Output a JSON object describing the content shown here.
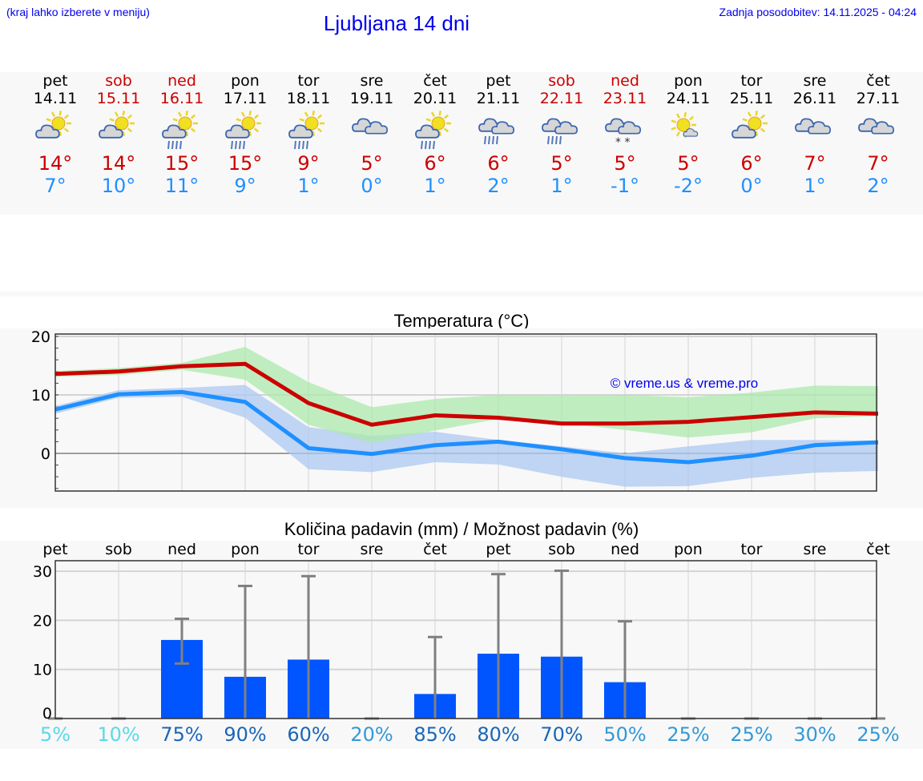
{
  "header": {
    "hint": "(kraj lahko izberete v meniju)",
    "title": "Ljubljana 14 dni",
    "updated": "Zadnja posodobitev: 14.11.2025 - 04:24"
  },
  "colors": {
    "weekend": "#cc0000",
    "max": "#cc0000",
    "min": "#1e90ff",
    "bar": "#0055ff",
    "maxband": "#ace9ac",
    "minband": "#aec8f2"
  },
  "days": [
    {
      "day": "pet",
      "date": "14.11",
      "weekend": false,
      "icon": "partly-cloudy",
      "max": "14°",
      "min": "7°"
    },
    {
      "day": "sob",
      "date": "15.11",
      "weekend": true,
      "icon": "partly-cloudy",
      "max": "14°",
      "min": "10°"
    },
    {
      "day": "ned",
      "date": "16.11",
      "weekend": true,
      "icon": "partly-cloudy-rain",
      "max": "15°",
      "min": "11°"
    },
    {
      "day": "pon",
      "date": "17.11",
      "weekend": false,
      "icon": "partly-cloudy-rain",
      "max": "15°",
      "min": "9°"
    },
    {
      "day": "tor",
      "date": "18.11",
      "weekend": false,
      "icon": "partly-cloudy-rain",
      "max": "9°",
      "min": "1°"
    },
    {
      "day": "sre",
      "date": "19.11",
      "weekend": false,
      "icon": "cloudy",
      "max": "5°",
      "min": "0°"
    },
    {
      "day": "čet",
      "date": "20.11",
      "weekend": false,
      "icon": "partly-cloudy-rain",
      "max": "6°",
      "min": "1°"
    },
    {
      "day": "pet",
      "date": "21.11",
      "weekend": false,
      "icon": "cloudy-rain",
      "max": "6°",
      "min": "2°"
    },
    {
      "day": "sob",
      "date": "22.11",
      "weekend": true,
      "icon": "cloudy-rain",
      "max": "5°",
      "min": "1°"
    },
    {
      "day": "ned",
      "date": "23.11",
      "weekend": true,
      "icon": "cloudy-snow",
      "max": "5°",
      "min": "-1°"
    },
    {
      "day": "pon",
      "date": "24.11",
      "weekend": false,
      "icon": "sunny-small-cloud",
      "max": "5°",
      "min": "-2°"
    },
    {
      "day": "tor",
      "date": "25.11",
      "weekend": false,
      "icon": "partly-cloudy",
      "max": "6°",
      "min": "0°"
    },
    {
      "day": "sre",
      "date": "26.11",
      "weekend": false,
      "icon": "cloudy",
      "max": "7°",
      "min": "1°"
    },
    {
      "day": "čet",
      "date": "27.11",
      "weekend": false,
      "icon": "cloudy",
      "max": "7°",
      "min": "2°"
    }
  ],
  "chart_data": [
    {
      "type": "line",
      "title": "Temperatura (°C)",
      "ylim": [
        -6.4,
        20.3
      ],
      "yticks": [
        "20",
        "10",
        "0"
      ],
      "watermark": "© vreme.us & vreme.pro",
      "series": [
        {
          "name": "max",
          "values": [
            13.6,
            14,
            14.9,
            15.3,
            8.6,
            4.9,
            6.5,
            6.1,
            5.1,
            5.1,
            5.4,
            6.2,
            7,
            6.8
          ],
          "band_upper": [
            14.1,
            14.6,
            15.5,
            18.2,
            12.2,
            7.9,
            9.3,
            10,
            9.9,
            10,
            9.6,
            10.4,
            11.6,
            11.5
          ],
          "band_lower": [
            13.1,
            13.4,
            14.3,
            12.6,
            4.9,
            1.8,
            3.9,
            5.9,
            5.2,
            4,
            2.7,
            3.6,
            6,
            6.4
          ]
        },
        {
          "name": "min",
          "values": [
            7.5,
            10.1,
            10.5,
            8.8,
            0.9,
            -0.1,
            1.4,
            2,
            0.7,
            -0.8,
            -1.5,
            -0.4,
            1.4,
            1.9
          ],
          "band_upper": [
            8.1,
            10.8,
            11.2,
            11.7,
            4.5,
            3,
            3.7,
            2.3,
            1.2,
            0,
            1.2,
            2.3,
            2.3,
            2.2
          ],
          "band_lower": [
            6.8,
            9.5,
            9.7,
            6.1,
            -2.7,
            -3.2,
            -1.5,
            -1.9,
            -4,
            -5.7,
            -5.6,
            -4.2,
            -3.3,
            -3
          ]
        }
      ]
    },
    {
      "type": "bar",
      "title": "Količina padavin (mm) / Možnost padavin (%)",
      "ylim": [
        0,
        32
      ],
      "yticks": [
        "30",
        "20",
        "10",
        "0"
      ],
      "categories": [
        "pet",
        "sob",
        "ned",
        "pon",
        "tor",
        "sre",
        "čet",
        "pet",
        "sob",
        "ned",
        "pon",
        "tor",
        "sre",
        "čet"
      ],
      "values": [
        0,
        0,
        16,
        8.5,
        12,
        0,
        5,
        13.2,
        12.6,
        7.4,
        0,
        0,
        0,
        0
      ],
      "err_low": [
        0,
        0,
        11.2,
        0,
        0,
        0,
        0,
        0,
        0,
        0,
        0,
        0,
        0,
        0
      ],
      "err_high": [
        0,
        0,
        20.3,
        27,
        29,
        0,
        16.6,
        29.4,
        30.1,
        19.8,
        0,
        0,
        0,
        0
      ],
      "probability": [
        "5%",
        "10%",
        "75%",
        "90%",
        "60%",
        "20%",
        "85%",
        "80%",
        "70%",
        "50%",
        "25%",
        "25%",
        "30%",
        "25%"
      ],
      "prob_colors": [
        "#5bd8e8",
        "#5bd8e8",
        "#1a66b8",
        "#1a66b8",
        "#1a66b8",
        "#3399d6",
        "#1a66b8",
        "#1a66b8",
        "#1a66b8",
        "#3399d6",
        "#3399d6",
        "#3399d6",
        "#3399d6",
        "#3399d6"
      ]
    }
  ]
}
